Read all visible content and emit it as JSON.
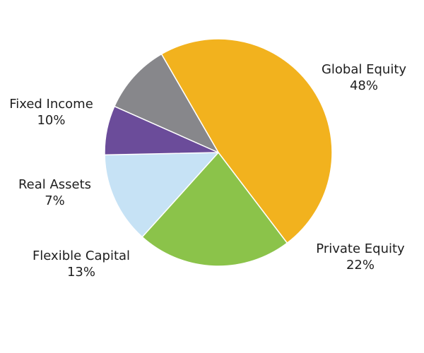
{
  "chart_data": {
    "type": "pie",
    "categories": [
      "Global Equity",
      "Private Equity",
      "Flexible Capital",
      "Real Assets",
      "Fixed Income"
    ],
    "values": [
      48,
      22,
      13,
      7,
      10
    ],
    "value_labels": [
      "48%",
      "22%",
      "13%",
      "7%",
      "10%"
    ],
    "colors": [
      "#F2B21E",
      "#8BC34A",
      "#C6E2F5",
      "#6B4C9A",
      "#87878B"
    ],
    "title": "",
    "legend": "none",
    "start_angle_deg": -120,
    "direction": "clockwise"
  }
}
